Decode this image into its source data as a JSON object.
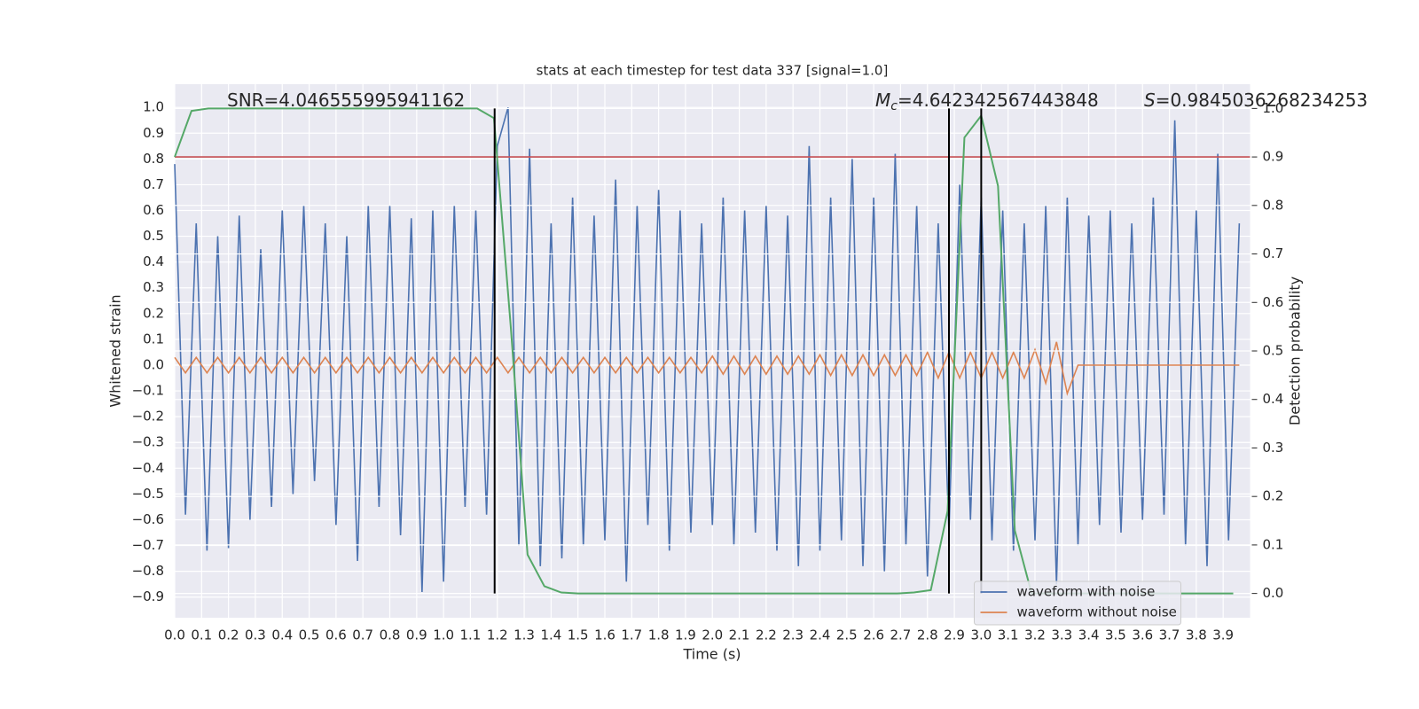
{
  "chart_data": {
    "type": "line",
    "title": "stats at each timestep for test data 337 [signal=1.0]",
    "xlabel": "Time (s)",
    "ylabel": "Whitened strain",
    "y2label": "Detection probability",
    "background": "#eaeaf2",
    "grid": true,
    "legend": "lower right",
    "xlim": [
      0,
      4.0
    ],
    "ylim": [
      -0.98,
      1.09
    ],
    "y2lim": [
      -0.05,
      1.05
    ],
    "xticks": [
      {
        "value": 0,
        "label": "0.0"
      },
      0.1,
      0.2,
      0.3,
      0.4,
      0.5,
      0.6,
      0.7,
      0.8,
      0.9,
      {
        "value": 1,
        "label": "1.0"
      },
      1.1,
      1.2,
      1.3,
      1.4,
      1.5,
      1.6,
      1.7,
      1.8,
      1.9,
      {
        "value": 2,
        "label": "2.0"
      },
      2.1,
      2.2,
      2.3,
      2.4,
      2.5,
      2.6,
      2.7,
      2.8,
      2.9,
      {
        "value": 3,
        "label": "3.0"
      },
      3.1,
      3.2,
      3.3,
      3.4,
      3.5,
      3.6,
      3.7,
      3.8,
      3.9
    ],
    "yticks": [
      {
        "value": -0.9,
        "label": "−0.9"
      },
      {
        "value": -0.8,
        "label": "−0.8"
      },
      {
        "value": -0.7,
        "label": "−0.7"
      },
      {
        "value": -0.6,
        "label": "−0.6"
      },
      {
        "value": -0.5,
        "label": "−0.5"
      },
      {
        "value": -0.4,
        "label": "−0.4"
      },
      {
        "value": -0.3,
        "label": "−0.3"
      },
      {
        "value": -0.2,
        "label": "−0.2"
      },
      {
        "value": -0.1,
        "label": "−0.1"
      },
      {
        "value": 0,
        "label": "0.0"
      },
      0.1,
      0.2,
      0.3,
      0.4,
      0.5,
      0.6,
      0.7,
      0.8,
      0.9,
      {
        "value": 1,
        "label": "1.0"
      }
    ],
    "y2ticks": [
      {
        "value": 0,
        "label": "0.0"
      },
      0.1,
      0.2,
      0.3,
      0.4,
      0.5,
      0.6,
      0.7,
      0.8,
      0.9,
      {
        "value": 1,
        "label": "1.0"
      }
    ],
    "x": [
      0,
      0.04,
      0.08,
      0.12,
      0.16,
      0.2,
      0.24,
      0.28,
      0.32,
      0.36,
      0.4,
      0.44,
      0.48,
      0.52,
      0.56,
      0.6,
      0.64,
      0.68,
      0.72,
      0.76,
      0.8,
      0.84,
      0.88,
      0.92,
      0.96,
      1.0,
      1.04,
      1.08,
      1.12,
      1.16,
      1.2,
      1.24,
      1.28,
      1.32,
      1.36,
      1.4,
      1.44,
      1.48,
      1.52,
      1.56,
      1.6,
      1.64,
      1.68,
      1.72,
      1.76,
      1.8,
      1.84,
      1.88,
      1.92,
      1.96,
      2.0,
      2.04,
      2.08,
      2.12,
      2.16,
      2.2,
      2.24,
      2.28,
      2.32,
      2.36,
      2.4,
      2.44,
      2.48,
      2.52,
      2.56,
      2.6,
      2.64,
      2.68,
      2.72,
      2.76,
      2.8,
      2.84,
      2.88,
      2.92,
      2.96,
      3.0,
      3.04,
      3.08,
      3.12,
      3.16,
      3.2,
      3.24,
      3.28,
      3.32,
      3.36,
      3.4,
      3.44,
      3.48,
      3.52,
      3.56,
      3.6,
      3.64,
      3.68,
      3.72,
      3.76,
      3.8,
      3.84,
      3.88,
      3.92,
      3.96
    ],
    "series": [
      {
        "name": "waveform with noise",
        "color": "#4c72b0",
        "values": [
          0.78,
          -0.58,
          0.55,
          -0.72,
          0.5,
          -0.71,
          0.58,
          -0.6,
          0.45,
          -0.55,
          0.6,
          -0.5,
          0.62,
          -0.45,
          0.55,
          -0.62,
          0.5,
          -0.76,
          0.62,
          -0.55,
          0.62,
          -0.66,
          0.57,
          -0.88,
          0.6,
          -0.84,
          0.62,
          -0.55,
          0.6,
          -0.58,
          0.85,
          1.0,
          -0.7,
          0.84,
          -0.78,
          0.55,
          -0.75,
          0.65,
          -0.7,
          0.58,
          -0.68,
          0.72,
          -0.84,
          0.62,
          -0.62,
          0.68,
          -0.72,
          0.6,
          -0.65,
          0.55,
          -0.62,
          0.65,
          -0.7,
          0.6,
          -0.65,
          0.62,
          -0.72,
          0.58,
          -0.78,
          0.85,
          -0.72,
          0.65,
          -0.68,
          0.8,
          -0.78,
          0.65,
          -0.8,
          0.82,
          -0.7,
          0.62,
          -0.82,
          0.55,
          -0.65,
          0.7,
          -0.6,
          0.65,
          -0.68,
          0.6,
          -0.72,
          0.55,
          -0.68,
          0.62,
          -0.85,
          0.65,
          -0.7,
          0.58,
          -0.62,
          0.6,
          -0.65,
          0.55,
          -0.6,
          0.65,
          -0.58,
          0.95,
          -0.7,
          0.6,
          -0.78,
          0.82,
          -0.68,
          0.55
        ]
      },
      {
        "name": "waveform without noise",
        "color": "#dd8452",
        "values": [
          0.03,
          -0.03,
          0.03,
          -0.03,
          0.03,
          -0.03,
          0.03,
          -0.03,
          0.03,
          -0.03,
          0.03,
          -0.03,
          0.03,
          -0.03,
          0.03,
          -0.03,
          0.03,
          -0.03,
          0.03,
          -0.03,
          0.03,
          -0.03,
          0.03,
          -0.03,
          0.03,
          -0.03,
          0.03,
          -0.03,
          0.03,
          -0.03,
          0.03,
          -0.03,
          0.03,
          -0.03,
          0.03,
          -0.03,
          0.03,
          -0.03,
          0.03,
          -0.03,
          0.03,
          -0.03,
          0.03,
          -0.03,
          0.03,
          -0.03,
          0.03,
          -0.03,
          0.03,
          -0.03,
          0.035,
          -0.035,
          0.035,
          -0.035,
          0.035,
          -0.035,
          0.035,
          -0.035,
          0.035,
          -0.035,
          0.04,
          -0.04,
          0.04,
          -0.04,
          0.04,
          -0.04,
          0.04,
          -0.04,
          0.04,
          -0.04,
          0.05,
          -0.05,
          0.05,
          -0.05,
          0.05,
          -0.05,
          0.05,
          -0.05,
          0.05,
          -0.05,
          0.06,
          -0.07,
          0.09,
          -0.11,
          0,
          0,
          0,
          0,
          0,
          0,
          0,
          0,
          0,
          0,
          0,
          0,
          0,
          0,
          0,
          0
        ]
      }
    ],
    "probability": {
      "axis": "y2",
      "color": "#55a868",
      "x": [
        0,
        0.0625,
        0.125,
        0.1875,
        0.25,
        0.3125,
        0.375,
        0.4375,
        0.5,
        0.5625,
        0.625,
        0.6875,
        0.75,
        0.8125,
        0.875,
        0.9375,
        1.0,
        1.0625,
        1.125,
        1.1875,
        1.25,
        1.3125,
        1.375,
        1.4375,
        1.5,
        1.5625,
        1.625,
        1.6875,
        1.75,
        1.8125,
        1.875,
        1.9375,
        2.0,
        2.0625,
        2.125,
        2.1875,
        2.25,
        2.3125,
        2.375,
        2.4375,
        2.5,
        2.5625,
        2.625,
        2.6875,
        2.75,
        2.8125,
        2.875,
        2.9375,
        3.0,
        3.0625,
        3.125,
        3.1875,
        3.25,
        3.3125,
        3.375,
        3.4375,
        3.5,
        3.5625,
        3.625,
        3.6875,
        3.75,
        3.8125,
        3.875,
        3.9375
      ],
      "values": [
        0.9,
        0.995,
        1.0,
        1.0,
        1.0,
        1.0,
        1.0,
        1.0,
        1.0,
        1.0,
        1.0,
        1.0,
        1.0,
        1.0,
        1.0,
        1.0,
        1.0,
        1.0,
        1.0,
        0.98,
        0.55,
        0.08,
        0.015,
        0.002,
        0,
        0,
        0,
        0,
        0,
        0,
        0,
        0,
        0,
        0,
        0,
        0,
        0,
        0,
        0,
        0,
        0,
        0,
        0,
        0,
        0.002,
        0.007,
        0.17,
        0.94,
        0.985,
        0.84,
        0.13,
        0,
        0,
        0,
        0,
        0,
        0,
        0,
        0,
        0,
        0,
        0,
        0,
        0
      ]
    },
    "threshold": {
      "value": 0.9,
      "axis": "y2",
      "color": "#c44e52"
    },
    "vlines": {
      "x": [
        1.19,
        2.88,
        3.0
      ],
      "ymin": 0,
      "ymax": 1,
      "axis": "y2",
      "color": "#000000"
    },
    "annotations": [
      {
        "text": "SNR=4.046555995941162"
      },
      {
        "symbol": "M",
        "subscript": "c",
        "text": "=4.642342567443848"
      },
      {
        "symbol": "S",
        "text": "=0.9845036268234253"
      }
    ]
  }
}
